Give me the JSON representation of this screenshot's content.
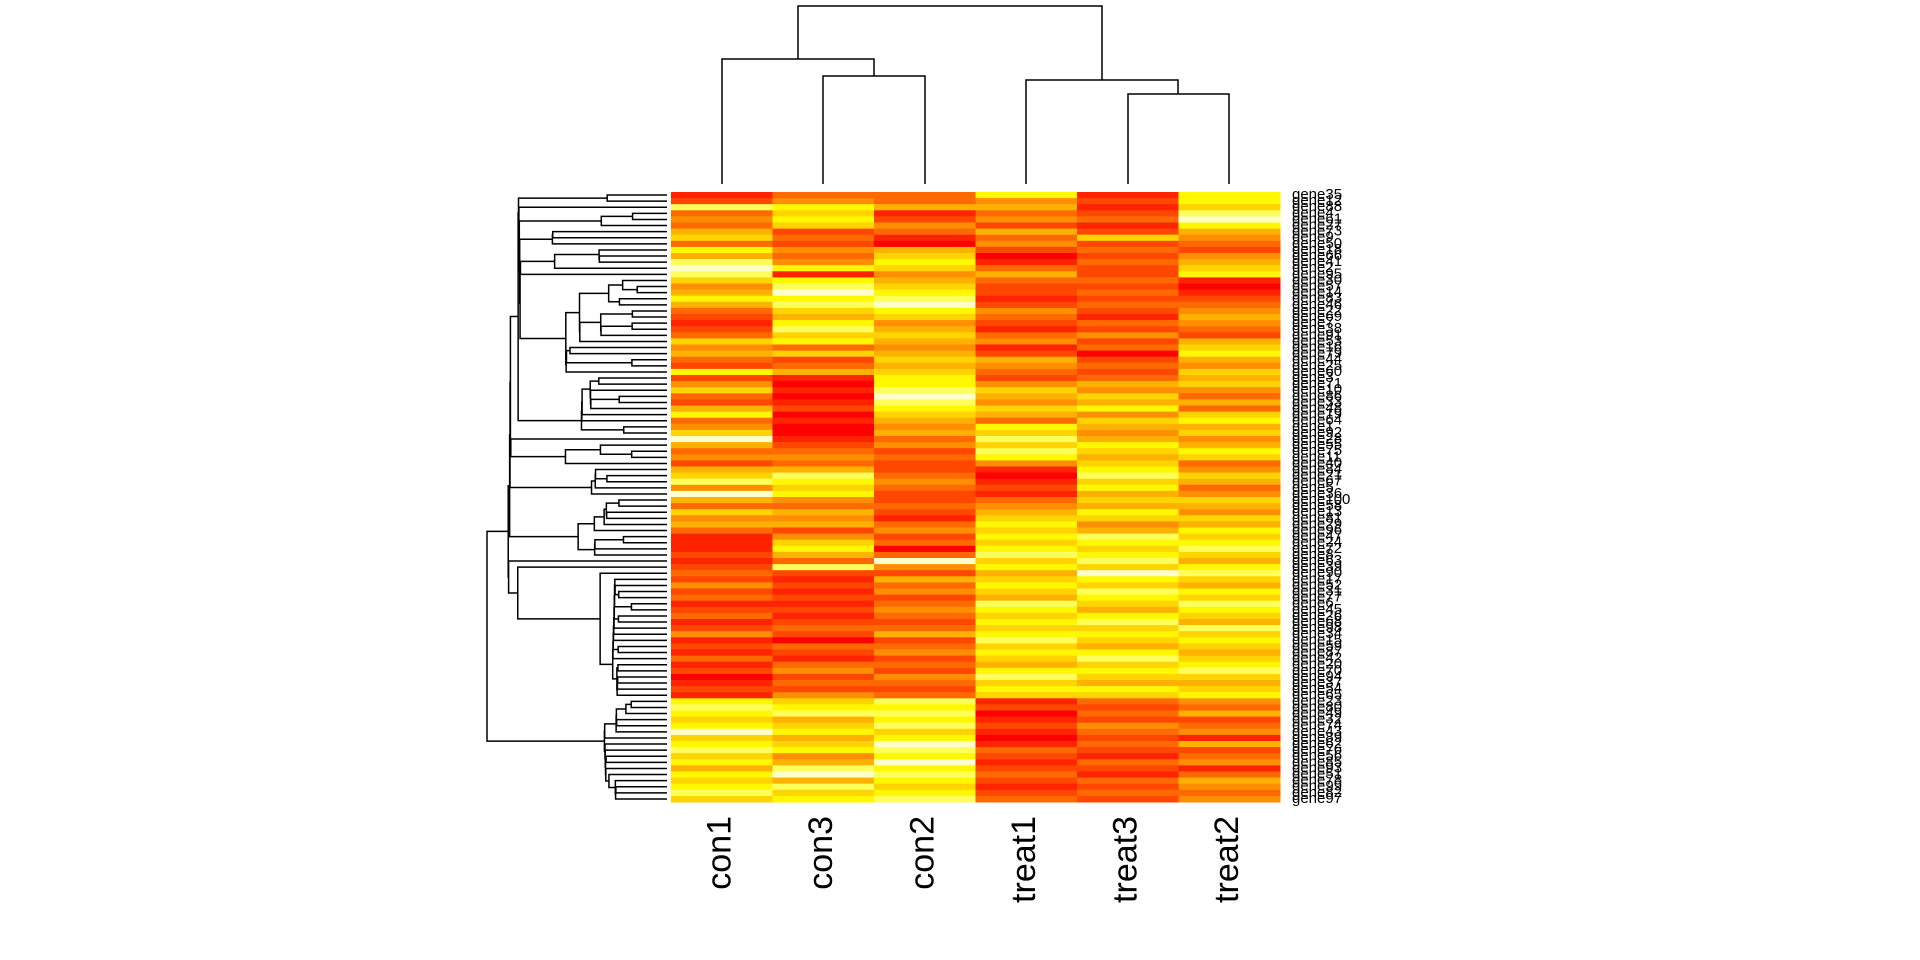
{
  "chart_data": {
    "type": "heatmap",
    "columns": [
      "con1",
      "con3",
      "con2",
      "treat1",
      "treat3",
      "treat2"
    ],
    "rows": [
      "gene35",
      "gene12",
      "gene88",
      "gene4",
      "gene61",
      "gene27",
      "gene73",
      "gene9",
      "gene50",
      "gene18",
      "gene66",
      "gene41",
      "gene2",
      "gene95",
      "gene30",
      "gene57",
      "gene14",
      "gene83",
      "gene46",
      "gene22",
      "gene69",
      "gene7",
      "gene38",
      "gene91",
      "gene53",
      "gene16",
      "gene79",
      "gene44",
      "gene25",
      "gene60",
      "gene3",
      "gene71",
      "gene10",
      "gene86",
      "gene33",
      "gene48",
      "gene19",
      "gene64",
      "gene1",
      "gene92",
      "gene28",
      "gene55",
      "gene75",
      "gene11",
      "gene40",
      "gene84",
      "gene21",
      "gene67",
      "gene5",
      "gene36",
      "gene100",
      "gene58",
      "gene13",
      "gene81",
      "gene29",
      "gene96",
      "gene47",
      "gene24",
      "gene72",
      "gene8",
      "gene63",
      "gene39",
      "gene90",
      "gene17",
      "gene52",
      "gene31",
      "gene77",
      "gene6",
      "gene45",
      "gene26",
      "gene68",
      "gene98",
      "gene34",
      "gene15",
      "gene59",
      "gene87",
      "gene42",
      "gene20",
      "gene70",
      "gene94",
      "gene37",
      "gene54",
      "gene65",
      "gene23",
      "gene80",
      "gene49",
      "gene32",
      "gene74",
      "gene43",
      "gene89",
      "gene62",
      "gene76",
      "gene56",
      "gene85",
      "gene93",
      "gene51",
      "gene78",
      "gene99",
      "gene82",
      "gene97"
    ],
    "values": [
      [
        1,
        3,
        3,
        7,
        1,
        7
      ],
      [
        2,
        4,
        3,
        4,
        2,
        7
      ],
      [
        8,
        7,
        5,
        5,
        1,
        6
      ],
      [
        3,
        6,
        1,
        3,
        2,
        8
      ],
      [
        4,
        7,
        2,
        4,
        3,
        9
      ],
      [
        3,
        6,
        4,
        2,
        1,
        7
      ],
      [
        5,
        2,
        3,
        5,
        2,
        5
      ],
      [
        6,
        3,
        1,
        3,
        6,
        4
      ],
      [
        3,
        2,
        0,
        4,
        2,
        3
      ],
      [
        7,
        4,
        5,
        2,
        3,
        2
      ],
      [
        5,
        3,
        6,
        0,
        2,
        4
      ],
      [
        8,
        4,
        7,
        1,
        3,
        5
      ],
      [
        9,
        7,
        6,
        3,
        2,
        6
      ],
      [
        8,
        1,
        4,
        5,
        2,
        7
      ],
      [
        6,
        7,
        5,
        3,
        3,
        1
      ],
      [
        4,
        8,
        6,
        2,
        2,
        0
      ],
      [
        5,
        9,
        7,
        2,
        3,
        1
      ],
      [
        7,
        7,
        8,
        1,
        2,
        2
      ],
      [
        5,
        8,
        9,
        2,
        3,
        3
      ],
      [
        3,
        6,
        7,
        4,
        2,
        4
      ],
      [
        2,
        5,
        6,
        3,
        1,
        5
      ],
      [
        1,
        7,
        4,
        2,
        3,
        4
      ],
      [
        2,
        8,
        5,
        1,
        2,
        3
      ],
      [
        3,
        6,
        6,
        3,
        4,
        2
      ],
      [
        6,
        7,
        5,
        4,
        2,
        5
      ],
      [
        4,
        3,
        4,
        1,
        3,
        6
      ],
      [
        5,
        6,
        5,
        2,
        0,
        7
      ],
      [
        3,
        2,
        6,
        5,
        2,
        5
      ],
      [
        2,
        3,
        5,
        4,
        3,
        4
      ],
      [
        7,
        5,
        6,
        3,
        2,
        6
      ],
      [
        2,
        1,
        7,
        2,
        3,
        5
      ],
      [
        4,
        0,
        7,
        4,
        5,
        6
      ],
      [
        6,
        1,
        8,
        6,
        4,
        4
      ],
      [
        3,
        0,
        9,
        5,
        6,
        3
      ],
      [
        2,
        1,
        8,
        4,
        5,
        5
      ],
      [
        5,
        2,
        7,
        6,
        7,
        3
      ],
      [
        7,
        0,
        6,
        5,
        4,
        6
      ],
      [
        3,
        1,
        5,
        3,
        6,
        7
      ],
      [
        4,
        0,
        4,
        7,
        5,
        5
      ],
      [
        6,
        0,
        5,
        6,
        4,
        6
      ],
      [
        9,
        1,
        3,
        8,
        5,
        4
      ],
      [
        5,
        2,
        4,
        6,
        7,
        5
      ],
      [
        3,
        3,
        2,
        8,
        6,
        7
      ],
      [
        4,
        4,
        3,
        7,
        5,
        6
      ],
      [
        2,
        3,
        2,
        4,
        6,
        3
      ],
      [
        5,
        5,
        2,
        1,
        7,
        4
      ],
      [
        6,
        8,
        3,
        0,
        8,
        6
      ],
      [
        8,
        7,
        4,
        1,
        6,
        5
      ],
      [
        4,
        6,
        3,
        2,
        7,
        3
      ],
      [
        9,
        7,
        2,
        1,
        5,
        4
      ],
      [
        5,
        4,
        2,
        3,
        6,
        6
      ],
      [
        3,
        3,
        3,
        4,
        5,
        5
      ],
      [
        6,
        5,
        2,
        5,
        7,
        4
      ],
      [
        4,
        4,
        1,
        6,
        6,
        6
      ],
      [
        5,
        5,
        3,
        7,
        4,
        5
      ],
      [
        3,
        2,
        4,
        6,
        5,
        7
      ],
      [
        1,
        4,
        2,
        7,
        8,
        6
      ],
      [
        1,
        6,
        3,
        6,
        7,
        7
      ],
      [
        1,
        7,
        0,
        7,
        6,
        8
      ],
      [
        2,
        5,
        3,
        8,
        7,
        6
      ],
      [
        1,
        3,
        9,
        6,
        8,
        5
      ],
      [
        2,
        8,
        4,
        7,
        6,
        7
      ],
      [
        3,
        2,
        2,
        5,
        9,
        8
      ],
      [
        2,
        1,
        5,
        6,
        7,
        6
      ],
      [
        4,
        2,
        3,
        7,
        6,
        5
      ],
      [
        2,
        1,
        4,
        6,
        8,
        7
      ],
      [
        3,
        2,
        2,
        5,
        7,
        6
      ],
      [
        1,
        1,
        3,
        8,
        6,
        8
      ],
      [
        2,
        2,
        4,
        7,
        5,
        7
      ],
      [
        3,
        1,
        3,
        6,
        7,
        6
      ],
      [
        1,
        2,
        2,
        7,
        8,
        5
      ],
      [
        2,
        3,
        3,
        6,
        6,
        8
      ],
      [
        4,
        2,
        5,
        7,
        7,
        6
      ],
      [
        1,
        0,
        2,
        8,
        6,
        7
      ],
      [
        2,
        3,
        3,
        6,
        5,
        6
      ],
      [
        1,
        2,
        4,
        7,
        7,
        5
      ],
      [
        3,
        1,
        2,
        6,
        8,
        6
      ],
      [
        1,
        3,
        3,
        5,
        6,
        7
      ],
      [
        2,
        4,
        2,
        7,
        7,
        8
      ],
      [
        0,
        2,
        4,
        8,
        6,
        6
      ],
      [
        1,
        3,
        3,
        6,
        5,
        5
      ],
      [
        2,
        2,
        2,
        7,
        7,
        6
      ],
      [
        1,
        4,
        3,
        6,
        6,
        7
      ],
      [
        7,
        6,
        8,
        1,
        3,
        4
      ],
      [
        8,
        7,
        7,
        2,
        2,
        3
      ],
      [
        7,
        8,
        8,
        0,
        3,
        5
      ],
      [
        6,
        5,
        7,
        1,
        2,
        2
      ],
      [
        7,
        6,
        8,
        2,
        4,
        3
      ],
      [
        9,
        7,
        6,
        1,
        3,
        4
      ],
      [
        6,
        5,
        7,
        0,
        2,
        1
      ],
      [
        7,
        6,
        9,
        1,
        3,
        5
      ],
      [
        8,
        7,
        8,
        3,
        2,
        2
      ],
      [
        6,
        4,
        7,
        2,
        1,
        3
      ],
      [
        7,
        5,
        9,
        1,
        3,
        4
      ],
      [
        5,
        8,
        7,
        2,
        2,
        1
      ],
      [
        7,
        9,
        8,
        3,
        1,
        3
      ],
      [
        6,
        5,
        7,
        2,
        3,
        5
      ],
      [
        7,
        8,
        6,
        1,
        2,
        4
      ],
      [
        8,
        6,
        7,
        2,
        3,
        3
      ],
      [
        6,
        7,
        8,
        3,
        2,
        4
      ]
    ],
    "vlim": [
      0,
      9
    ],
    "colors": [
      "#ff0000",
      "#ffff00",
      "#ffffcc"
    ]
  }
}
